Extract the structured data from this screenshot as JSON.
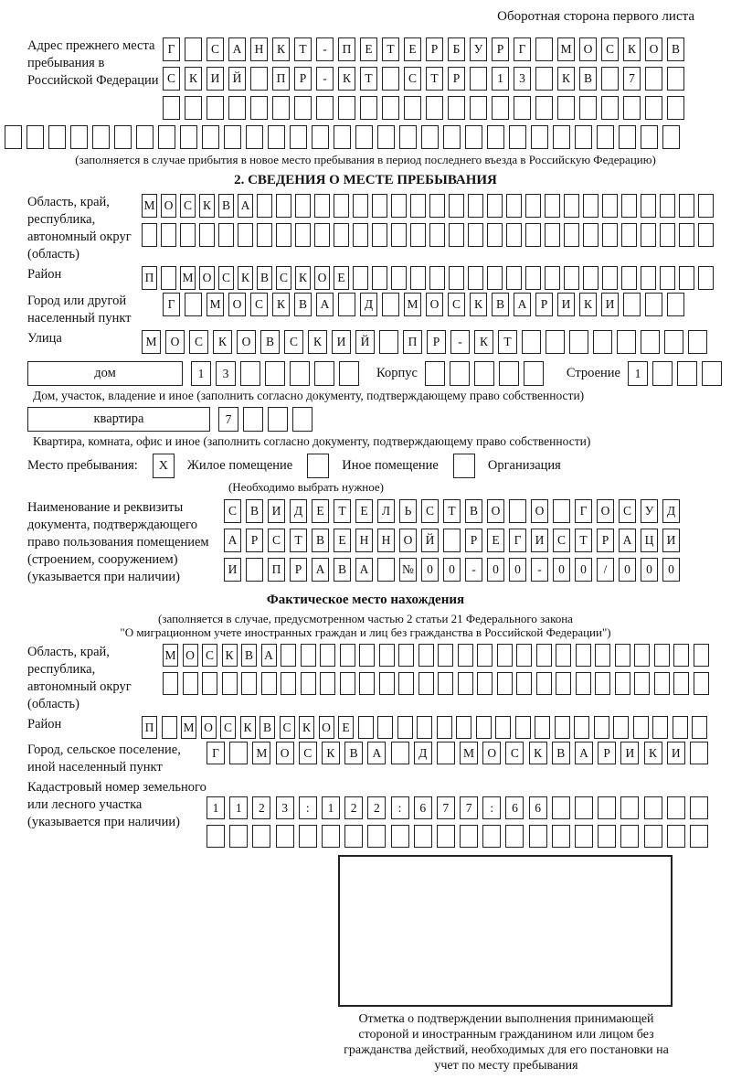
{
  "page": {
    "header_note": "Оборотная сторона первого листа"
  },
  "prev_address": {
    "label": "Адрес прежнего места пребывания в Российской Федерации",
    "r1": [
      "Г",
      "",
      "С",
      "А",
      "Н",
      "К",
      "Т",
      "-",
      "П",
      "Е",
      "Т",
      "Е",
      "Р",
      "Б",
      "У",
      "Р",
      "Г",
      "",
      "М",
      "О",
      "С",
      "К",
      "О",
      "В"
    ],
    "r2": [
      "С",
      "К",
      "И",
      "Й",
      "",
      "П",
      "Р",
      "-",
      "К",
      "Т",
      "",
      "С",
      "Т",
      "Р",
      "",
      "1",
      "3",
      "",
      "К",
      "В",
      "",
      "7",
      "",
      ""
    ],
    "r3": [
      "",
      "",
      "",
      "",
      "",
      "",
      "",
      "",
      "",
      "",
      "",
      "",
      "",
      "",
      "",
      "",
      "",
      "",
      "",
      "",
      "",
      "",
      "",
      ""
    ],
    "r4": [
      "",
      "",
      "",
      "",
      "",
      "",
      "",
      "",
      "",
      "",
      "",
      "",
      "",
      "",
      "",
      "",
      "",
      "",
      "",
      "",
      "",
      "",
      "",
      "",
      "",
      "",
      "",
      "",
      "",
      "",
      ""
    ],
    "note": "(заполняется в случае прибытия в новое место пребывания в период последнего въезда в Российскую Федерацию)"
  },
  "section2": {
    "title": "2. СВЕДЕНИЯ О МЕСТЕ ПРЕБЫВАНИЯ",
    "oblast": {
      "label": "Область, край, республика, автономный округ (область)",
      "r1": [
        "М",
        "О",
        "С",
        "К",
        "В",
        "А",
        "",
        "",
        "",
        "",
        "",
        "",
        "",
        "",
        "",
        "",
        "",
        "",
        "",
        "",
        "",
        "",
        "",
        "",
        "",
        "",
        "",
        "",
        "",
        ""
      ],
      "r2": [
        "",
        "",
        "",
        "",
        "",
        "",
        "",
        "",
        "",
        "",
        "",
        "",
        "",
        "",
        "",
        "",
        "",
        "",
        "",
        "",
        "",
        "",
        "",
        "",
        "",
        "",
        "",
        "",
        "",
        ""
      ]
    },
    "raion": {
      "label": "Район",
      "cells": [
        "П",
        "",
        "М",
        "О",
        "С",
        "К",
        "В",
        "С",
        "К",
        "О",
        "Е",
        "",
        "",
        "",
        "",
        "",
        "",
        "",
        "",
        "",
        "",
        "",
        "",
        "",
        "",
        "",
        "",
        "",
        "",
        ""
      ]
    },
    "gorod": {
      "label": "Город или другой населенный пункт",
      "cells": [
        "Г",
        "",
        "М",
        "О",
        "С",
        "К",
        "В",
        "А",
        "",
        "Д",
        "",
        "М",
        "О",
        "С",
        "К",
        "В",
        "А",
        "Р",
        "И",
        "К",
        "И",
        "",
        "",
        ""
      ]
    },
    "ulitsa": {
      "label": "Улица",
      "cells": [
        "М",
        "О",
        "С",
        "К",
        "О",
        "В",
        "С",
        "К",
        "И",
        "Й",
        "",
        "П",
        "Р",
        "-",
        "К",
        "Т",
        "",
        "",
        "",
        "",
        "",
        "",
        "",
        ""
      ]
    },
    "dom": {
      "box_label": "дом",
      "cells": [
        "1",
        "3",
        "",
        "",
        "",
        "",
        ""
      ],
      "korpus_label": "Корпус",
      "korpus_cells": [
        "",
        "",
        "",
        "",
        ""
      ],
      "stroenie_label": "Строение",
      "stroenie_cells": [
        "1",
        "",
        "",
        ""
      ],
      "note": "Дом, участок, владение и иное (заполнить согласно документу, подтверждающему право собственности)"
    },
    "kvartira": {
      "box_label": "квартира",
      "cells": [
        "7",
        "",
        "",
        ""
      ],
      "note": "Квартира, комната, офис и иное (заполнить согласно документу, подтверждающему право собственности)"
    },
    "mesto": {
      "label": "Место пребывания:",
      "options": [
        {
          "label": "Жилое помещение",
          "value": "X"
        },
        {
          "label": "Иное помещение",
          "value": ""
        },
        {
          "label": "Организация",
          "value": ""
        }
      ],
      "note": "(Необходимо выбрать нужное)"
    },
    "document": {
      "label": "Наименование и реквизиты документа, подтверждающего право пользования помещением (строением, сооружением) (указывается при наличии)",
      "r1": [
        "С",
        "В",
        "И",
        "Д",
        "Е",
        "Т",
        "Е",
        "Л",
        "Ь",
        "С",
        "Т",
        "В",
        "О",
        "",
        "О",
        "",
        "Г",
        "О",
        "С",
        "У",
        "Д"
      ],
      "r2": [
        "А",
        "Р",
        "С",
        "Т",
        "В",
        "Е",
        "Н",
        "Н",
        "О",
        "Й",
        "",
        "Р",
        "Е",
        "Г",
        "И",
        "С",
        "Т",
        "Р",
        "А",
        "Ц",
        "И"
      ],
      "r3": [
        "И",
        "",
        "П",
        "Р",
        "А",
        "В",
        "А",
        "",
        "№",
        "0",
        "0",
        "-",
        "0",
        "0",
        "-",
        "0",
        "0",
        "/",
        "0",
        "0",
        "0"
      ]
    }
  },
  "fact": {
    "title": "Фактическое место нахождения",
    "note_lines": [
      "(заполняется в случае, предусмотренном частью 2 статьи 21 Федерального закона",
      "\"О миграционном учете иностранных граждан и лиц без гражданства в Российской Федерации\")"
    ],
    "oblast": {
      "label": "Область, край, республика, автономный округ (область)",
      "r1": [
        "М",
        "О",
        "С",
        "К",
        "В",
        "А",
        "",
        "",
        "",
        "",
        "",
        "",
        "",
        "",
        "",
        "",
        "",
        "",
        "",
        "",
        "",
        "",
        "",
        "",
        "",
        "",
        "",
        ""
      ],
      "r2": [
        "",
        "",
        "",
        "",
        "",
        "",
        "",
        "",
        "",
        "",
        "",
        "",
        "",
        "",
        "",
        "",
        "",
        "",
        "",
        "",
        "",
        "",
        "",
        "",
        "",
        "",
        "",
        ""
      ]
    },
    "raion": {
      "label": "Район",
      "cells": [
        "П",
        "",
        "М",
        "О",
        "С",
        "К",
        "В",
        "С",
        "К",
        "О",
        "Е",
        "",
        "",
        "",
        "",
        "",
        "",
        "",
        "",
        "",
        "",
        "",
        "",
        "",
        "",
        "",
        "",
        "",
        ""
      ]
    },
    "gorod": {
      "label": "Город, сельское поселение, иной населенный пункт",
      "cells": [
        "Г",
        "",
        "М",
        "О",
        "С",
        "К",
        "В",
        "А",
        "",
        "Д",
        "",
        "М",
        "О",
        "С",
        "К",
        "В",
        "А",
        "Р",
        "И",
        "К",
        "И",
        ""
      ]
    },
    "kadastr": {
      "label": "Кадастровый номер земельного или лесного участка (указывается при наличии)",
      "r1": [
        "1",
        "1",
        "2",
        "3",
        ":",
        "1",
        "2",
        "2",
        ":",
        "6",
        "7",
        "7",
        ":",
        "6",
        "6",
        "",
        "",
        "",
        "",
        "",
        "",
        ""
      ],
      "r2": [
        "",
        "",
        "",
        "",
        "",
        "",
        "",
        "",
        "",
        "",
        "",
        "",
        "",
        "",
        "",
        "",
        "",
        "",
        "",
        "",
        "",
        ""
      ]
    },
    "stamp_caption": "Отметка о подтверждении выполнения принимающей стороной и иностранным гражданином или лицом без гражданства действий, необходимых для его постановки на учет по месту пребывания"
  }
}
